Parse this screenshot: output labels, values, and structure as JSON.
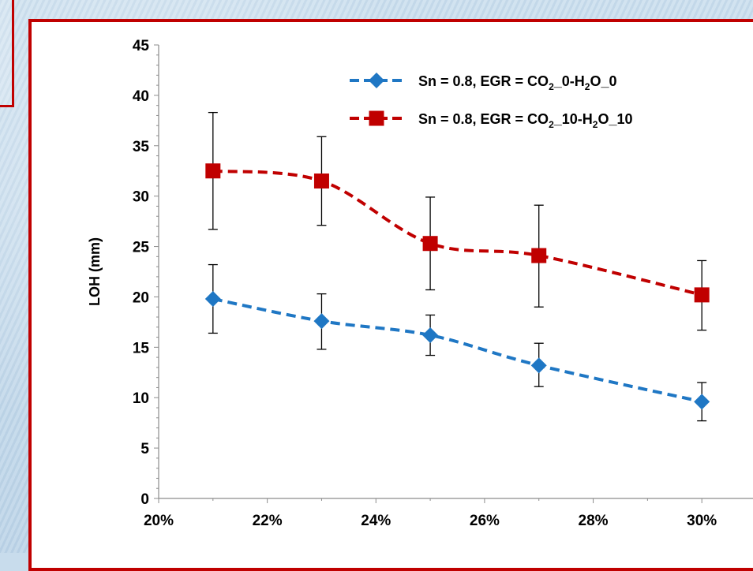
{
  "chart_data": {
    "type": "line",
    "xlabel": "",
    "ylabel": "LOH (mm)",
    "xlim": [
      0.2,
      0.31
    ],
    "ylim": [
      0,
      45
    ],
    "x_ticks": [
      "20%",
      "22%",
      "24%",
      "26%",
      "28%",
      "30%"
    ],
    "y_ticks": [
      "0",
      "5",
      "10",
      "15",
      "20",
      "25",
      "30",
      "35",
      "40",
      "45"
    ],
    "legend_position": "top-right",
    "series": [
      {
        "name": "Sn = 0.8, EGR = CO2_0-H2O_0",
        "legend_parts": [
          "Sn = 0.8, EGR = CO",
          "2",
          "_0-H",
          "2",
          "O_0"
        ],
        "color": "#1f77c4",
        "marker": "diamond",
        "line_style": "dashed",
        "x": [
          0.21,
          0.23,
          0.25,
          0.27,
          0.3
        ],
        "values": [
          19.8,
          17.6,
          16.2,
          13.2,
          9.6
        ],
        "err_low": [
          16.4,
          14.8,
          14.2,
          11.1,
          7.7
        ],
        "err_high": [
          23.2,
          20.3,
          18.2,
          15.4,
          11.5
        ]
      },
      {
        "name": "Sn = 0.8, EGR = CO2_10-H2O_10",
        "legend_parts": [
          "Sn = 0.8, EGR = CO",
          "2",
          "_10-H",
          "2",
          "O_10"
        ],
        "color": "#c00000",
        "marker": "square",
        "line_style": "dashed",
        "x": [
          0.21,
          0.23,
          0.25,
          0.27,
          0.3
        ],
        "values": [
          32.5,
          31.5,
          25.3,
          24.1,
          20.2
        ],
        "err_low": [
          26.7,
          27.1,
          20.7,
          19.0,
          16.7
        ],
        "err_high": [
          38.3,
          35.9,
          29.9,
          29.1,
          23.6
        ]
      }
    ]
  }
}
